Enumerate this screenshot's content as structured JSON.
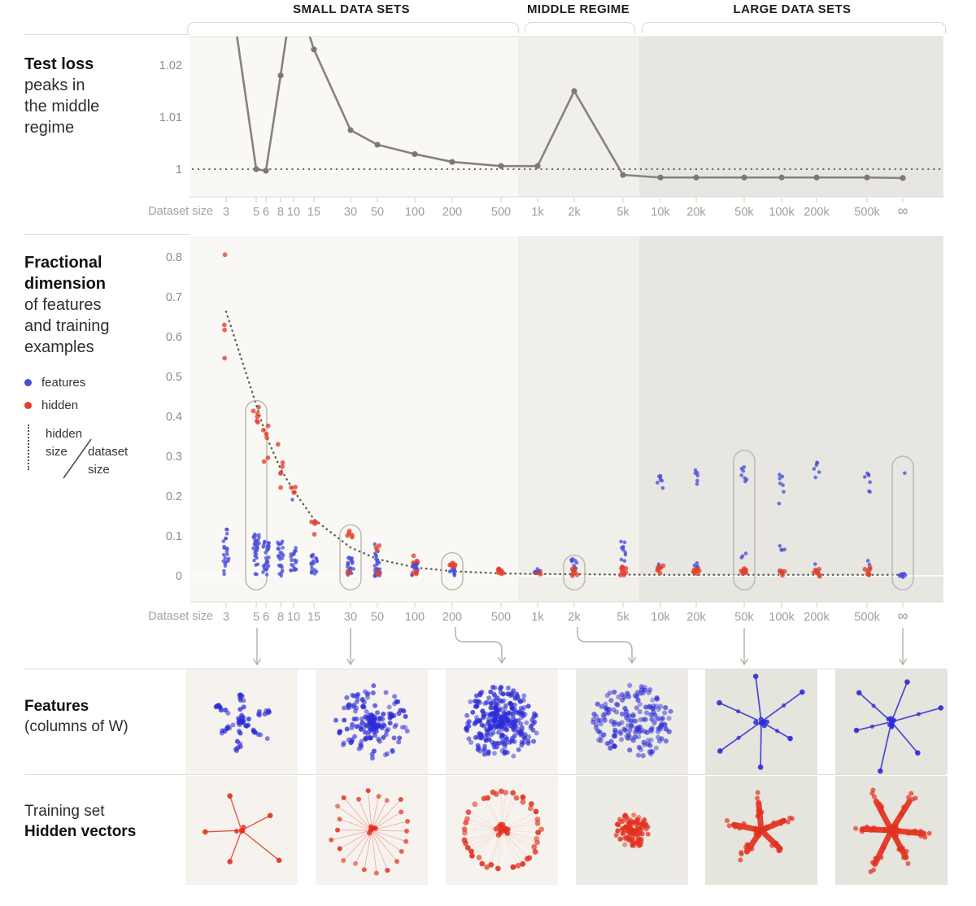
{
  "regimes": {
    "labels": [
      "SMALL DATA SETS",
      "MIDDLE REGIME",
      "LARGE DATA SETS"
    ]
  },
  "palette": {
    "features_blue": "#4a4edd",
    "hidden_red": "#e2402d",
    "thumb_blue": "#2b2bd8",
    "thumb_red": "#e3301f",
    "line_gray": "#86837d",
    "dotted_dark": "#5f5d58",
    "band_small": "#faf8f4",
    "band_middle": "#f1efea",
    "band_large": "#e7e6e0",
    "tile_small": "#f6f3ee",
    "tile_middle": "#edebe5",
    "tile_large": "#e5e4dd",
    "annotation_gray": "#b9b6b0",
    "axis_text": "#a09d98"
  },
  "left_labels": {
    "test_loss": [
      "Test loss",
      "peaks in",
      "the middle",
      "regime"
    ],
    "fractional": [
      "Fractional",
      "dimension",
      "of features",
      "and training",
      "examples"
    ],
    "features_row": [
      "Features",
      "(columns of W)"
    ],
    "hidden_row": [
      "Training set",
      "Hidden vectors"
    ]
  },
  "legend": {
    "features": "features",
    "hidden": "hidden",
    "ratio_top1": "hidden",
    "ratio_top2": "size",
    "ratio_bottom1": "dataset",
    "ratio_bottom2": "size"
  },
  "axis": {
    "dataset_size_label": "Dataset size"
  },
  "chart_data": [
    {
      "id": "test_loss",
      "type": "line",
      "title": "Test loss peaks in the middle regime",
      "x_categories": [
        "3",
        "5",
        "6",
        "8",
        "10",
        "15",
        "30",
        "50",
        "100",
        "200",
        "500",
        "1k",
        "2k",
        "5k",
        "10k",
        "20k",
        "50k",
        "100k",
        "200k",
        "500k",
        "∞"
      ],
      "values": [
        1.04,
        1.0,
        0.9997,
        1.018,
        1.035,
        1.023,
        1.0075,
        1.0047,
        1.0029,
        1.0014,
        1.0006,
        1.0006,
        1.015,
        0.9989,
        0.9984,
        0.9984,
        0.9984,
        0.9984,
        0.9984,
        0.9984,
        0.9983
      ],
      "yticks": [
        1,
        1.01,
        1.02
      ],
      "ytick_labels": [
        "1",
        "1.01",
        "1.02"
      ],
      "ylim": [
        0.9945,
        1.0255
      ],
      "baseline": 1.0,
      "note": "values at 3 and 10 spike above the visible axis range"
    },
    {
      "id": "fractional_dimension",
      "type": "scatter",
      "title": "Fractional dimension of features and training examples",
      "x_categories": [
        "3",
        "5",
        "6",
        "8",
        "10",
        "15",
        "30",
        "50",
        "100",
        "200",
        "500",
        "1k",
        "2k",
        "5k",
        "10k",
        "20k",
        "50k",
        "100k",
        "200k",
        "500k",
        "∞"
      ],
      "yticks": [
        0,
        0.1,
        0.2,
        0.3,
        0.4,
        0.5,
        0.6,
        0.7,
        0.8
      ],
      "ytick_labels": [
        "0",
        "0.1",
        "0.2",
        "0.3",
        "0.4",
        "0.5",
        "0.6",
        "0.7",
        "0.8"
      ],
      "ylim": [
        -0.04,
        0.85
      ],
      "series_names": [
        "features",
        "hidden"
      ],
      "curve": {
        "label": "hidden size / dataset size",
        "points": [
          [
            "3",
            0.663
          ],
          [
            "5",
            0.43
          ],
          [
            "6",
            0.352
          ],
          [
            "8",
            0.268
          ],
          [
            "10",
            0.214
          ],
          [
            "15",
            0.142
          ],
          [
            "30",
            0.071
          ],
          [
            "50",
            0.042
          ],
          [
            "100",
            0.021
          ],
          [
            "200",
            0.0115
          ],
          [
            "500",
            0.006
          ],
          [
            "1k",
            0.0045
          ],
          [
            "2k",
            0.004
          ],
          [
            "5k",
            0.003
          ],
          [
            "10k",
            0.0025
          ],
          [
            "20k",
            0.0025
          ],
          [
            "50k",
            0.0025
          ],
          [
            "100k",
            0.0025
          ],
          [
            "200k",
            0.0025
          ],
          [
            "500k",
            0.0025
          ],
          [
            "∞",
            0.0025
          ]
        ]
      },
      "highlighted_columns": [
        {
          "x": "5",
          "top": 0.44
        },
        {
          "x": "30",
          "top": 0.128
        },
        {
          "x": "200",
          "top": 0.058
        },
        {
          "x": "2k",
          "top": 0.052
        },
        {
          "x": "50k",
          "top": 0.315
        },
        {
          "x": "∞",
          "top": 0.3
        }
      ],
      "clusters": [
        {
          "x": "3",
          "series": "features",
          "range": [
            0.0,
            0.12
          ],
          "n": 22
        },
        {
          "x": "3",
          "series": "hidden",
          "values": [
            0.806,
            0.63,
            0.615,
            0.545
          ]
        },
        {
          "x": "5",
          "series": "features",
          "range": [
            0.0,
            0.105
          ],
          "n": 30
        },
        {
          "x": "5",
          "series": "hidden",
          "range": [
            0.375,
            0.43
          ],
          "n": 6
        },
        {
          "x": "6",
          "series": "features",
          "range": [
            0.0,
            0.09
          ],
          "n": 28
        },
        {
          "x": "6",
          "series": "hidden",
          "range": [
            0.34,
            0.385
          ],
          "n": 4
        },
        {
          "x": "6",
          "series": "hidden",
          "values": [
            0.295,
            0.285
          ]
        },
        {
          "x": "8",
          "series": "features",
          "range": [
            0.0,
            0.085
          ],
          "n": 24
        },
        {
          "x": "8",
          "series": "hidden",
          "range": [
            0.255,
            0.29
          ],
          "n": 4
        },
        {
          "x": "8",
          "series": "hidden",
          "values": [
            0.33,
            0.22
          ]
        },
        {
          "x": "10",
          "series": "features",
          "range": [
            0.0,
            0.07
          ],
          "n": 20
        },
        {
          "x": "10",
          "series": "hidden",
          "range": [
            0.2,
            0.235
          ],
          "n": 4
        },
        {
          "x": "10",
          "series": "features",
          "values": [
            0.19
          ]
        },
        {
          "x": "15",
          "series": "features",
          "range": [
            0.0,
            0.06
          ],
          "n": 20
        },
        {
          "x": "15",
          "series": "hidden",
          "range": [
            0.128,
            0.155
          ],
          "n": 4
        },
        {
          "x": "15",
          "series": "hidden",
          "values": [
            0.105
          ]
        },
        {
          "x": "30",
          "series": "features",
          "range": [
            0.0,
            0.05
          ],
          "n": 20
        },
        {
          "x": "30",
          "series": "hidden",
          "range": [
            0.097,
            0.115
          ],
          "n": 5
        },
        {
          "x": "30",
          "series": "hidden",
          "range": [
            0.0,
            0.01
          ],
          "n": 3
        },
        {
          "x": "50",
          "series": "features",
          "range": [
            0.0,
            0.045
          ],
          "n": 18
        },
        {
          "x": "50",
          "series": "features",
          "range": [
            0.05,
            0.09
          ],
          "n": 5
        },
        {
          "x": "50",
          "series": "hidden",
          "range": [
            0.065,
            0.08
          ],
          "n": 3
        },
        {
          "x": "50",
          "series": "hidden",
          "range": [
            0.0,
            0.01
          ],
          "n": 3
        },
        {
          "x": "100",
          "series": "hidden",
          "range": [
            0.018,
            0.055
          ],
          "n": 9
        },
        {
          "x": "100",
          "series": "features",
          "range": [
            0.0,
            0.03
          ],
          "n": 12
        },
        {
          "x": "100",
          "series": "hidden",
          "range": [
            0.0,
            0.012
          ],
          "n": 4
        },
        {
          "x": "200",
          "series": "hidden",
          "range": [
            0.013,
            0.034
          ],
          "n": 7
        },
        {
          "x": "200",
          "series": "features",
          "range": [
            0.0,
            0.018
          ],
          "n": 8
        },
        {
          "x": "500",
          "series": "hidden",
          "range": [
            0.002,
            0.016
          ],
          "n": 9
        },
        {
          "x": "1k",
          "series": "hidden",
          "range": [
            0.0,
            0.012
          ],
          "n": 8
        },
        {
          "x": "1k",
          "series": "features",
          "range": [
            0.008,
            0.018
          ],
          "n": 3
        },
        {
          "x": "2k",
          "series": "features",
          "range": [
            0.018,
            0.045
          ],
          "n": 9
        },
        {
          "x": "2k",
          "series": "hidden",
          "range": [
            0.0,
            0.018
          ],
          "n": 8
        },
        {
          "x": "5k",
          "series": "features",
          "range": [
            0.028,
            0.095
          ],
          "n": 10
        },
        {
          "x": "5k",
          "series": "hidden",
          "range": [
            0.0,
            0.028
          ],
          "n": 10
        },
        {
          "x": "10k",
          "series": "features",
          "range": [
            0.22,
            0.255
          ],
          "n": 7
        },
        {
          "x": "10k",
          "series": "hidden",
          "range": [
            0.0,
            0.026
          ],
          "n": 10
        },
        {
          "x": "10k",
          "series": "features",
          "values": [
            0.03
          ]
        },
        {
          "x": "20k",
          "series": "features",
          "range": [
            0.2,
            0.27
          ],
          "n": 6
        },
        {
          "x": "20k",
          "series": "hidden",
          "range": [
            0.0,
            0.022
          ],
          "n": 9
        },
        {
          "x": "20k",
          "series": "features",
          "range": [
            0.024,
            0.036
          ],
          "n": 3
        },
        {
          "x": "50k",
          "series": "features",
          "range": [
            0.22,
            0.29
          ],
          "n": 7
        },
        {
          "x": "50k",
          "series": "features",
          "range": [
            0.04,
            0.06
          ],
          "n": 3
        },
        {
          "x": "50k",
          "series": "hidden",
          "range": [
            0.0,
            0.02
          ],
          "n": 9
        },
        {
          "x": "100k",
          "series": "features",
          "range": [
            0.2,
            0.265
          ],
          "n": 6
        },
        {
          "x": "100k",
          "series": "features",
          "values": [
            0.18
          ]
        },
        {
          "x": "100k",
          "series": "features",
          "range": [
            0.035,
            0.08
          ],
          "n": 4
        },
        {
          "x": "100k",
          "series": "hidden",
          "range": [
            0.0,
            0.016
          ],
          "n": 8
        },
        {
          "x": "200k",
          "series": "features",
          "range": [
            0.235,
            0.3
          ],
          "n": 6
        },
        {
          "x": "200k",
          "series": "features",
          "values": [
            0.03
          ]
        },
        {
          "x": "200k",
          "series": "hidden",
          "range": [
            0.0,
            0.02
          ],
          "n": 8
        },
        {
          "x": "500k",
          "series": "features",
          "range": [
            0.21,
            0.26
          ],
          "n": 7
        },
        {
          "x": "500k",
          "series": "features",
          "values": [
            0.03,
            0.038
          ]
        },
        {
          "x": "500k",
          "series": "hidden",
          "range": [
            0.0,
            0.02
          ],
          "n": 8
        },
        {
          "x": "∞",
          "series": "features",
          "values": [
            0.258
          ]
        },
        {
          "x": "∞",
          "series": "features",
          "range": [
            -0.004,
            0.006
          ],
          "n": 12
        }
      ]
    },
    {
      "id": "thumbnails",
      "type": "scatter-thumbnails",
      "rows": [
        "Features (columns of W)",
        "Training set Hidden vectors"
      ],
      "columns": [
        "5-6",
        "30",
        "200",
        "2k",
        "50k",
        "∞"
      ],
      "tiles": [
        {
          "col": "5-6",
          "regime": "small",
          "feature": {
            "pattern": "dotStar",
            "arms": 6,
            "len": 36,
            "n": 64,
            "seed": 11
          },
          "hidden": {
            "pattern": "lineStar",
            "arms": 5,
            "len": 54,
            "seed": 21
          }
        },
        {
          "col": "30",
          "regime": "small",
          "feature": {
            "pattern": "dotBurst",
            "n": 175,
            "len": 44,
            "seed": 12
          },
          "hidden": {
            "pattern": "spokes",
            "arms": 22,
            "len": 52,
            "seed": 22
          }
        },
        {
          "col": "200",
          "regime": "small",
          "feature": {
            "pattern": "dotBlob",
            "n": 300,
            "len": 46,
            "seed": 13
          },
          "hidden": {
            "pattern": "ring",
            "n": 46,
            "len": 47,
            "seed": 23
          }
        },
        {
          "col": "2k",
          "regime": "middle",
          "feature": {
            "pattern": "dotCloud",
            "n": 175,
            "len": 50,
            "seed": 14
          },
          "hidden": {
            "pattern": "dotBlob",
            "n": 130,
            "len": 21,
            "seed": 24
          }
        },
        {
          "col": "50k",
          "regime": "large",
          "feature": {
            "pattern": "pointStar",
            "arms": 6,
            "len": 56,
            "seed": 15
          },
          "hidden": {
            "pattern": "thickStar",
            "arms": 5,
            "len": 44,
            "seed": 25
          }
        },
        {
          "col": "∞",
          "regime": "large",
          "feature": {
            "pattern": "pointStar",
            "arms": 6,
            "len": 60,
            "seed": 16
          },
          "hidden": {
            "pattern": "thickStar",
            "arms": 6,
            "len": 54,
            "seed": 26
          }
        }
      ]
    }
  ]
}
